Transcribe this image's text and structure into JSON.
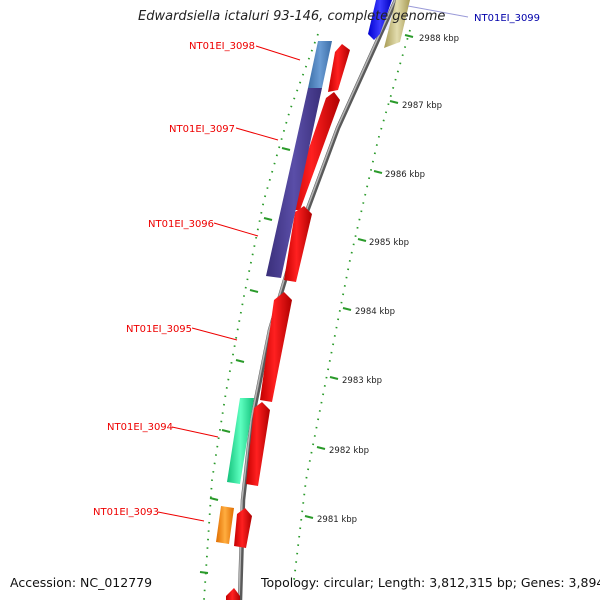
{
  "title": "Edwardsiella ictaluri 93-146, complete genome",
  "accession": "Accession: NC_012779",
  "topology": "Topology: circular; Length: 3,812,315 bp; Genes: 3,894",
  "colors": {
    "backbone": "#8c8c8c",
    "forward_cds": "#ff0000",
    "reverse_cds_1": "#4f4396",
    "reverse_cds_2": "#4c7fba",
    "reverse_cds_3": "#22e091",
    "reverse_cds_4": "#ff8a00",
    "top_gene_blue": "#1a1aff",
    "top_gene_khaki": "#c8bf80",
    "label_red": "#ee0000",
    "label_blue": "#0000aa",
    "tick_green": "#2a9a2a"
  },
  "gene_labels": [
    {
      "id": "NT01EI_3099",
      "color": "label_blue"
    },
    {
      "id": "NT01EI_3098",
      "color": "label_red"
    },
    {
      "id": "NT01EI_3097",
      "color": "label_red"
    },
    {
      "id": "NT01EI_3096",
      "color": "label_red"
    },
    {
      "id": "NT01EI_3095",
      "color": "label_red"
    },
    {
      "id": "NT01EI_3094",
      "color": "label_red"
    },
    {
      "id": "NT01EI_3093",
      "color": "label_red"
    }
  ],
  "kbp_ticks": [
    "2988 kbp",
    "2987 kbp",
    "2986 kbp",
    "2985 kbp",
    "2984 kbp",
    "2983 kbp",
    "2982 kbp",
    "2981 kbp"
  ]
}
